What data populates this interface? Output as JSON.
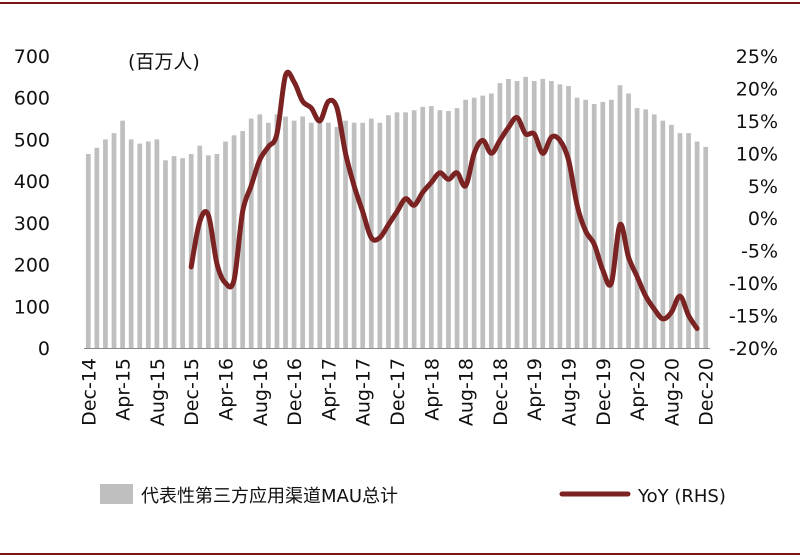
{
  "chart_data": {
    "type": "bar+line",
    "unit_label": "(百万人)",
    "y_left_ticks": [
      "700",
      "600",
      "500",
      "400",
      "300",
      "200",
      "100",
      "0"
    ],
    "y_left_lim": [
      0,
      700
    ],
    "y_right_ticks": [
      "25%",
      "20%",
      "15%",
      "10%",
      "5%",
      "0%",
      "-5%",
      "-10%",
      "-15%",
      "-20%"
    ],
    "y_right_lim": [
      -20,
      25
    ],
    "x_tick_labels": [
      "Dec-14",
      "Apr-15",
      "Aug-15",
      "Dec-15",
      "Apr-16",
      "Aug-16",
      "Dec-16",
      "Apr-17",
      "Aug-17",
      "Dec-17",
      "Apr-18",
      "Aug-18",
      "Dec-18",
      "Apr-19",
      "Aug-19",
      "Dec-19",
      "Apr-20",
      "Aug-20",
      "Dec-20"
    ],
    "x_start": "Dec-14",
    "x_end": "Dec-20",
    "series": [
      {
        "name": "代表性第三方应用渠道MAU总计",
        "kind": "bar",
        "color": "#bfbfbf",
        "values": [
          465,
          480,
          500,
          515,
          545,
          500,
          490,
          495,
          500,
          450,
          460,
          455,
          465,
          485,
          462,
          465,
          495,
          510,
          520,
          550,
          560,
          540,
          560,
          555,
          545,
          555,
          540,
          545,
          540,
          530,
          545,
          540,
          540,
          550,
          540,
          558,
          565,
          565,
          570,
          578,
          580,
          570,
          568,
          575,
          595,
          600,
          605,
          610,
          635,
          645,
          640,
          650,
          640,
          645,
          640,
          632,
          628,
          600,
          595,
          585,
          590,
          595,
          630,
          610,
          575,
          572,
          560,
          545,
          535,
          515,
          515,
          495,
          482
        ]
      },
      {
        "name": "YoY (RHS)",
        "kind": "line",
        "axis": "right",
        "color": "#7b2323",
        "start_index": 12,
        "values": [
          -7.5,
          -0.5,
          0.5,
          -7,
          -10,
          -9.5,
          1,
          5,
          9,
          11,
          13,
          22,
          21,
          18,
          17,
          15,
          18,
          17,
          10,
          5,
          1,
          -3,
          -3,
          -1,
          1,
          3,
          2,
          4,
          5.5,
          7,
          6,
          7,
          5,
          10,
          12,
          10,
          12,
          14,
          15.5,
          13,
          13,
          10,
          12.5,
          12,
          9,
          2,
          -2,
          -4,
          -8,
          -10,
          -1,
          -6,
          -9,
          -12,
          -14,
          -15.5,
          -14.5,
          -12,
          -15,
          -17
        ]
      }
    ]
  }
}
